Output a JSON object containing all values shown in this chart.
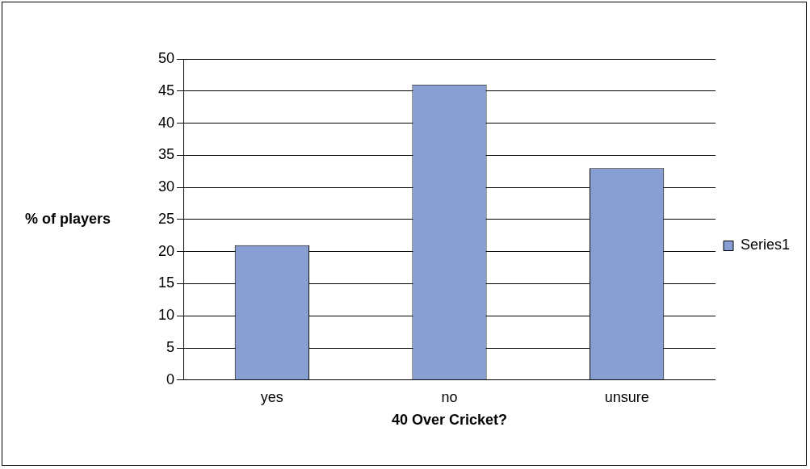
{
  "chart_data": {
    "type": "bar",
    "xlabel": "40 Over Cricket?",
    "ylabel": "% of players",
    "categories": [
      "yes",
      "no",
      "unsure"
    ],
    "series": [
      {
        "name": "Series1",
        "color": "#879fd3",
        "values": [
          21,
          46,
          33
        ]
      }
    ],
    "ylim": [
      0,
      50
    ],
    "yticks": [
      0,
      5,
      10,
      15,
      20,
      25,
      30,
      35,
      40,
      45,
      50
    ],
    "grid": "y",
    "legend": "right"
  }
}
